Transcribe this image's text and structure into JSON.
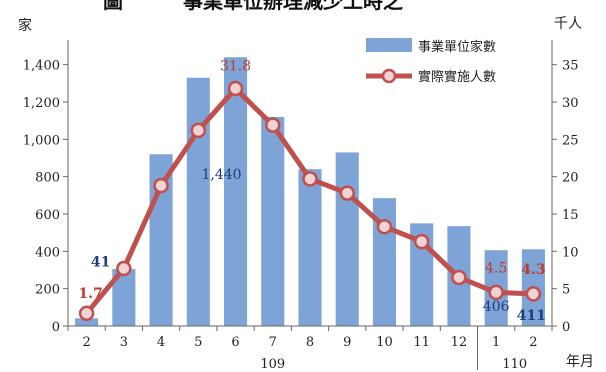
{
  "title_fragment": "圖　　　事業單位辦理減少工時之",
  "chart_data": {
    "type": "bar",
    "categories": [
      "2",
      "3",
      "4",
      "5",
      "6",
      "7",
      "8",
      "9",
      "10",
      "11",
      "12",
      "1",
      "2"
    ],
    "year_labels": [
      "109",
      "110"
    ],
    "x_unit": "年月",
    "y_left_unit": "家",
    "y_right_unit": "千人",
    "y_left_ticks": [
      "0",
      "200",
      "400",
      "600",
      "800",
      "1,000",
      "1,200",
      "1,400"
    ],
    "y_right_ticks": [
      "0",
      "5",
      "10",
      "15",
      "20",
      "25",
      "30",
      "35"
    ],
    "ylim_left": [
      0,
      1500
    ],
    "ylim_right": [
      0,
      37.5
    ],
    "series": [
      {
        "name": "事業單位家數",
        "kind": "bar",
        "axis": "left",
        "color": "#7ea3d6",
        "values": [
          41,
          305,
          920,
          1330,
          1440,
          1120,
          840,
          930,
          685,
          550,
          535,
          406,
          411
        ]
      },
      {
        "name": "實際實施人數",
        "kind": "line",
        "axis": "right",
        "color": "#c0504d",
        "marker_fill": "#f2d3d3",
        "values": [
          1.7,
          7.7,
          18.8,
          26.2,
          31.8,
          26.9,
          19.7,
          17.8,
          13.3,
          11.3,
          6.5,
          4.5,
          4.3
        ]
      }
    ],
    "data_labels": {
      "bar": [
        {
          "index": 0,
          "text": "41",
          "color": "#1f3d7a",
          "bold": true
        },
        {
          "index": 4,
          "text": "1,440",
          "color": "#1f3d7a",
          "bold": false
        },
        {
          "index": 11,
          "text": "406",
          "color": "#1f3d7a",
          "bold": false
        },
        {
          "index": 12,
          "text": "411",
          "color": "#1f3d7a",
          "bold": true
        }
      ],
      "line": [
        {
          "index": 0,
          "text": "1.7",
          "color": "#c0392b",
          "bold": true
        },
        {
          "index": 4,
          "text": "31.8",
          "color": "#c0392b",
          "bold": false
        },
        {
          "index": 11,
          "text": "4.5",
          "color": "#c0392b",
          "bold": false
        },
        {
          "index": 12,
          "text": "4.3",
          "color": "#c0392b",
          "bold": true
        }
      ]
    },
    "legend_position": "top-right",
    "grid": false
  }
}
